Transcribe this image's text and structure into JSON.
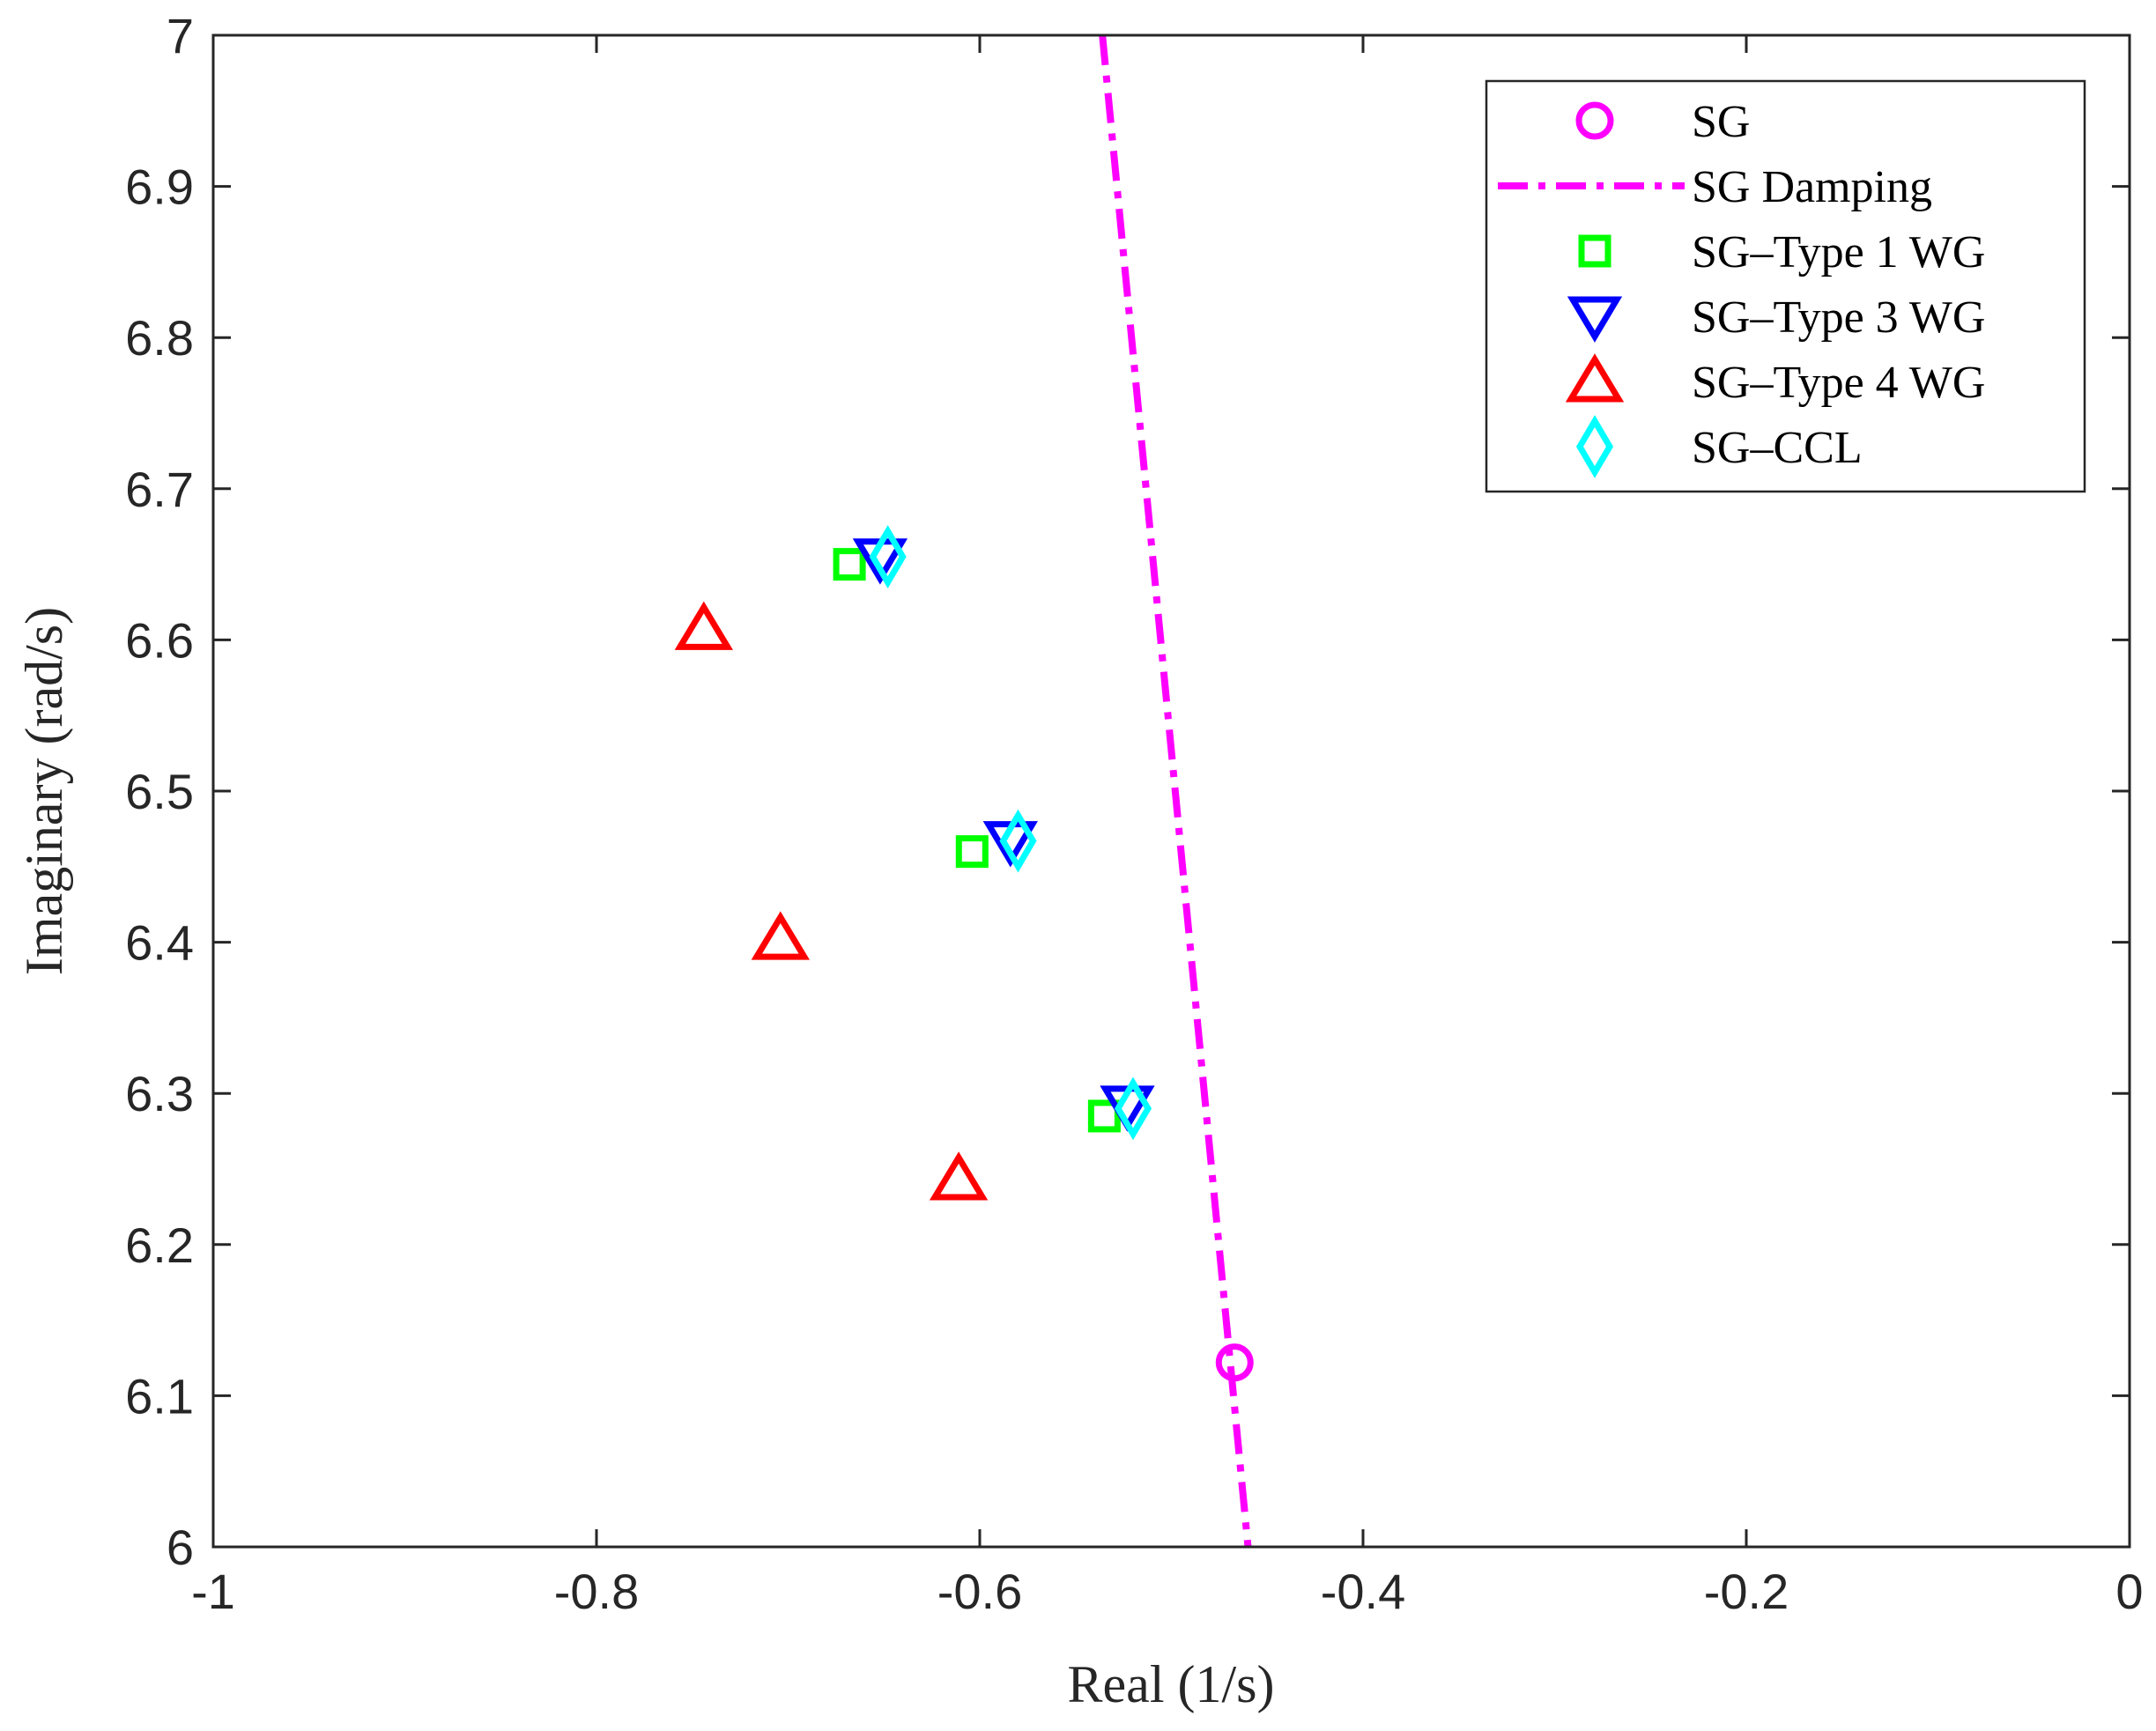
{
  "chart_data": {
    "type": "scatter",
    "title": "",
    "xlabel": "Real (1/s)",
    "ylabel": "Imaginary (rad/s)",
    "xlim": [
      -1,
      0
    ],
    "ylim": [
      6,
      7
    ],
    "xticks": [
      -1,
      -0.8,
      -0.6,
      -0.4,
      -0.2,
      0
    ],
    "xtick_labels": [
      "-1",
      "-0.8",
      "-0.6",
      "-0.4",
      "-0.2",
      "0"
    ],
    "yticks": [
      6,
      6.1,
      6.2,
      6.3,
      6.4,
      6.5,
      6.6,
      6.7,
      6.8,
      6.9,
      7
    ],
    "ytick_labels": [
      "6",
      "6.1",
      "6.2",
      "6.3",
      "6.4",
      "6.5",
      "6.6",
      "6.7",
      "6.8",
      "6.9",
      "7"
    ],
    "grid": false,
    "legend_position": "top-right",
    "series": [
      {
        "name": "SG",
        "kind": "marker",
        "marker": "circle",
        "color": "#ff00ff",
        "points": [
          {
            "x": -0.467,
            "y": 6.122
          }
        ]
      },
      {
        "name": "SG Damping",
        "kind": "line",
        "dash": "dash-dot",
        "color": "#ff00ff",
        "points": [
          {
            "x": -0.536,
            "y": 7.0
          },
          {
            "x": -0.46,
            "y": 6.0
          }
        ]
      },
      {
        "name": "SG–Type 1 WG",
        "kind": "marker",
        "marker": "square",
        "color": "#00ff00",
        "points": [
          {
            "x": -0.668,
            "y": 6.65
          },
          {
            "x": -0.604,
            "y": 6.46
          },
          {
            "x": -0.535,
            "y": 6.285
          }
        ]
      },
      {
        "name": "SG–Type 3 WG",
        "kind": "marker",
        "marker": "triangle-down",
        "color": "#0000ff",
        "points": [
          {
            "x": -0.652,
            "y": 6.654
          },
          {
            "x": -0.584,
            "y": 6.467
          },
          {
            "x": -0.523,
            "y": 6.292
          }
        ]
      },
      {
        "name": "SG–Type 4 WG",
        "kind": "marker",
        "marker": "triangle-up",
        "color": "#ff0000",
        "points": [
          {
            "x": -0.744,
            "y": 6.607
          },
          {
            "x": -0.704,
            "y": 6.402
          },
          {
            "x": -0.611,
            "y": 6.243
          }
        ]
      },
      {
        "name": "SG–CCL",
        "kind": "marker",
        "marker": "diamond",
        "color": "#00ffff",
        "points": [
          {
            "x": -0.648,
            "y": 6.655
          },
          {
            "x": -0.58,
            "y": 6.467
          },
          {
            "x": -0.52,
            "y": 6.29
          }
        ]
      }
    ]
  }
}
